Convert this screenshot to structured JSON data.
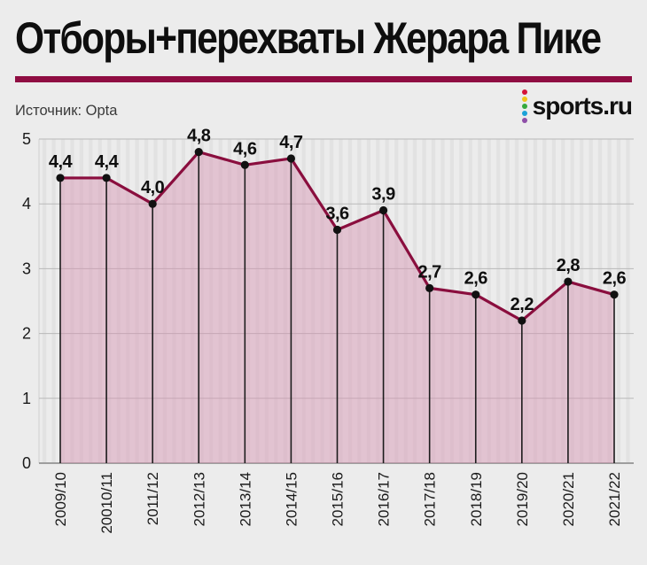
{
  "header": {
    "title": "Отборы+перехваты Жерара Пике",
    "source": "Источник: Opta",
    "divider_color": "#8f0d42",
    "brand": {
      "name": "sports.ru",
      "dot_colors": [
        "#d41338",
        "#f0c419",
        "#36a93c",
        "#1ba2d8",
        "#8e4fa8"
      ]
    }
  },
  "chart_data": {
    "type": "area",
    "title": "Отборы+перехваты Жерара Пике",
    "source": "Источник: Opta",
    "categories": [
      "2009/10",
      "20010/11",
      "2011/12",
      "2012/13",
      "2013/14",
      "2014/15",
      "2015/16",
      "2016/17",
      "2017/18",
      "2018/19",
      "2019/20",
      "2020/21",
      "2021/22"
    ],
    "values": [
      4.4,
      4.4,
      4.0,
      4.8,
      4.6,
      4.7,
      3.6,
      3.9,
      2.7,
      2.6,
      2.2,
      2.8,
      2.6
    ],
    "value_labels": [
      "4,4",
      "4,4",
      "4,0",
      "4,8",
      "4,6",
      "4,7",
      "3,6",
      "3,9",
      "2,7",
      "2,6",
      "2,2",
      "2,8",
      "2,6"
    ],
    "xlabel": "",
    "ylabel": "",
    "ylim": [
      0,
      5
    ],
    "yticks": [
      0,
      1,
      2,
      3,
      4,
      5
    ],
    "grid": true,
    "legend_position": "none",
    "colors": {
      "line": "#8a0e3e",
      "fill": "rgba(216,147,178,0.45)",
      "point": "#111111",
      "stem": "#1b1b1b",
      "gridline": "#b9b9b9",
      "baseline": "#9e9e9e",
      "stripe": "rgba(0,0,0,0.045)",
      "tick_text": "#1a1a1a",
      "label_text": "#0f0f0f"
    }
  }
}
